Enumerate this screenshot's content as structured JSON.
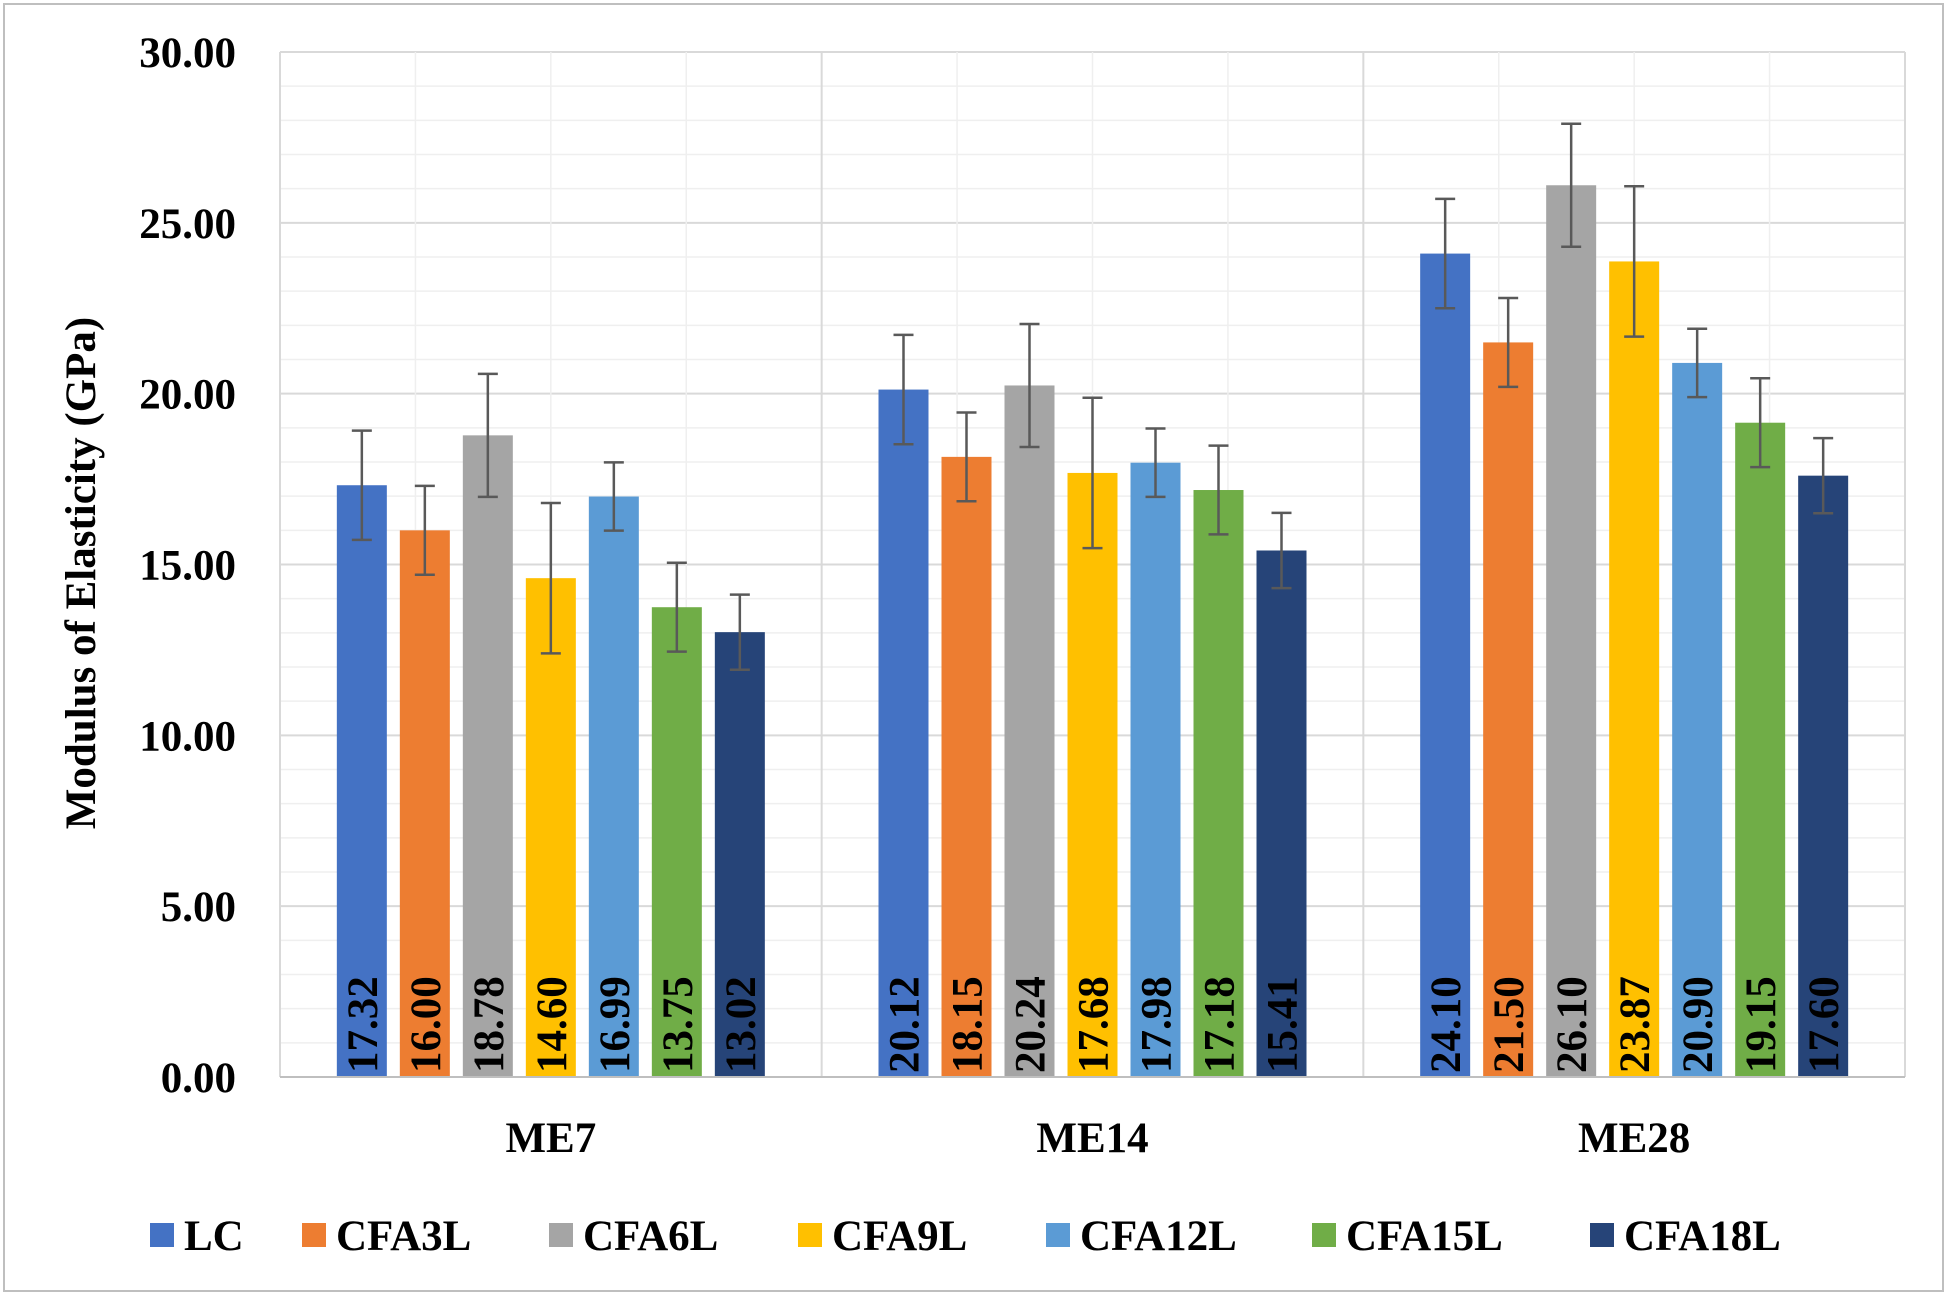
{
  "chart_data": {
    "type": "bar",
    "title": "",
    "xlabel": "",
    "ylabel": "Modulus of Elasticity (GPa)",
    "ylim": [
      0,
      30
    ],
    "ytick_step": 5,
    "ytick_labels": [
      "0.00",
      "5.00",
      "10.00",
      "15.00",
      "20.00",
      "25.00",
      "30.00"
    ],
    "grid": true,
    "legend_position": "bottom",
    "categories": [
      "ME7",
      "ME14",
      "ME28"
    ],
    "series": [
      {
        "name": "LC",
        "color": "#4472C4",
        "values": [
          17.32,
          20.12,
          24.1
        ],
        "value_labels": [
          "17.32",
          "20.12",
          "24.10"
        ],
        "errors": [
          1.6,
          1.6,
          1.6
        ]
      },
      {
        "name": "CFA3L",
        "color": "#ED7D31",
        "values": [
          16.0,
          18.15,
          21.5
        ],
        "value_labels": [
          "16.00",
          "18.15",
          "21.50"
        ],
        "errors": [
          1.3,
          1.3,
          1.3
        ]
      },
      {
        "name": "CFA6L",
        "color": "#A5A5A5",
        "values": [
          18.78,
          20.24,
          26.1
        ],
        "value_labels": [
          "18.78",
          "20.24",
          "26.10"
        ],
        "errors": [
          1.8,
          1.8,
          1.8
        ]
      },
      {
        "name": "CFA9L",
        "color": "#FFC000",
        "values": [
          14.6,
          17.68,
          23.87
        ],
        "value_labels": [
          "14.60",
          "17.68",
          "23.87"
        ],
        "errors": [
          2.2,
          2.2,
          2.2
        ]
      },
      {
        "name": "CFA12L",
        "color": "#5B9BD5",
        "values": [
          16.99,
          17.98,
          20.9
        ],
        "value_labels": [
          "16.99",
          "17.98",
          "20.90"
        ],
        "errors": [
          1.0,
          1.0,
          1.0
        ]
      },
      {
        "name": "CFA15L",
        "color": "#70AD47",
        "values": [
          13.75,
          17.18,
          19.15
        ],
        "value_labels": [
          "13.75",
          "17.18",
          "19.15"
        ],
        "errors": [
          1.3,
          1.3,
          1.3
        ]
      },
      {
        "name": "CFA18L",
        "color": "#264478",
        "values": [
          13.02,
          15.41,
          17.6
        ],
        "value_labels": [
          "13.02",
          "15.41",
          "17.60"
        ],
        "errors": [
          1.1,
          1.1,
          1.1
        ]
      }
    ]
  }
}
